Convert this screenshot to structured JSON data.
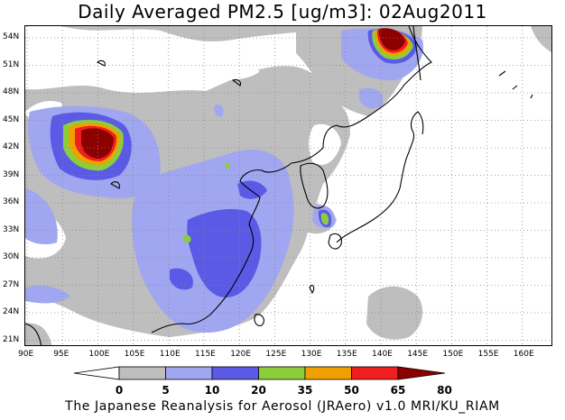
{
  "title": "Daily Averaged PM2.5 [ug/m3]: 02Aug2011",
  "credit": "The Japanese Reanalysis for Aerosol (JRAero) v1.0 MRI/KU_RIAM",
  "lat_labels": [
    "54N",
    "51N",
    "48N",
    "45N",
    "42N",
    "39N",
    "36N",
    "33N",
    "30N",
    "27N",
    "24N",
    "21N"
  ],
  "lon_labels": [
    "90E",
    "95E",
    "100E",
    "105E",
    "110E",
    "115E",
    "120E",
    "125E",
    "130E",
    "135E",
    "140E",
    "145E",
    "150E",
    "155E",
    "160E"
  ],
  "colorbar": {
    "levels": [
      "0",
      "5",
      "10",
      "20",
      "35",
      "50",
      "65",
      "80"
    ],
    "colors": [
      "#ffffff",
      "#bebebe",
      "#a0a6f0",
      "#5a5ae6",
      "#8ccd3c",
      "#f0a000",
      "#f01e1e",
      "#8c0000"
    ]
  }
}
